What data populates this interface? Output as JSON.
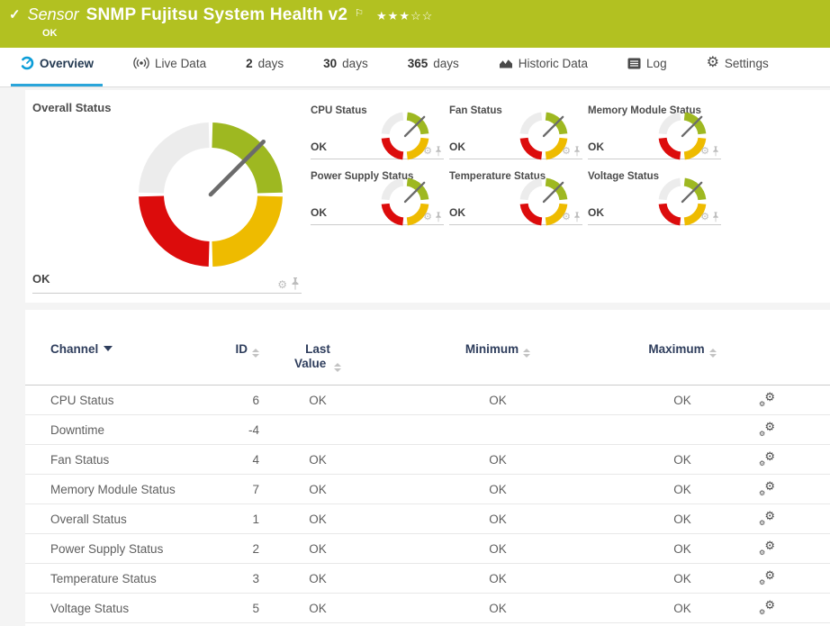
{
  "colors": {
    "header_green": "#b2c121",
    "tab_active_blue": "#2aa5da",
    "table_header_navy": "#2e3d5c"
  },
  "gauge_colors": {
    "up": "#9eb821",
    "warning": "#eebb00",
    "down": "#dc0c0c",
    "none": "#ececec",
    "needle": "#6b6b6b"
  },
  "icons": {
    "check": "✓",
    "flag": "⚐",
    "gear": "⚙",
    "stars": "★★★☆☆"
  },
  "header": {
    "kind": "Sensor",
    "title": "SNMP Fujitsu System Health v2",
    "status": "OK"
  },
  "tabs": [
    {
      "label": "Overview",
      "active": true
    },
    {
      "label": "Live Data"
    },
    {
      "num": "2",
      "label": "days"
    },
    {
      "num": "30",
      "label": "days"
    },
    {
      "num": "365",
      "label": "days"
    },
    {
      "label": "Historic Data"
    },
    {
      "label": "Log"
    },
    {
      "label": "Settings"
    }
  ],
  "overview": {
    "overall": {
      "title": "Overall Status",
      "status": "OK"
    },
    "mini_gauges": [
      {
        "title": "CPU Status",
        "status": "OK"
      },
      {
        "title": "Fan Status",
        "status": "OK"
      },
      {
        "title": "Memory Module Status",
        "status": "OK"
      },
      {
        "title": "Power Supply Status",
        "status": "OK"
      },
      {
        "title": "Temperature Status",
        "status": "OK"
      },
      {
        "title": "Voltage Status",
        "status": "OK"
      }
    ]
  },
  "table": {
    "columns": {
      "channel": "Channel",
      "id": "ID",
      "last_value": "Last Value",
      "minimum": "Minimum",
      "maximum": "Maximum"
    },
    "rows": [
      {
        "channel": "CPU Status",
        "id": "6",
        "last": "OK",
        "min": "OK",
        "max": "OK"
      },
      {
        "channel": "Downtime",
        "id": "-4",
        "last": "",
        "min": "",
        "max": ""
      },
      {
        "channel": "Fan Status",
        "id": "4",
        "last": "OK",
        "min": "OK",
        "max": "OK"
      },
      {
        "channel": "Memory Module Status",
        "id": "7",
        "last": "OK",
        "min": "OK",
        "max": "OK"
      },
      {
        "channel": "Overall Status",
        "id": "1",
        "last": "OK",
        "min": "OK",
        "max": "OK"
      },
      {
        "channel": "Power Supply Status",
        "id": "2",
        "last": "OK",
        "min": "OK",
        "max": "OK"
      },
      {
        "channel": "Temperature Status",
        "id": "3",
        "last": "OK",
        "min": "OK",
        "max": "OK"
      },
      {
        "channel": "Voltage Status",
        "id": "5",
        "last": "OK",
        "min": "OK",
        "max": "OK"
      }
    ]
  }
}
